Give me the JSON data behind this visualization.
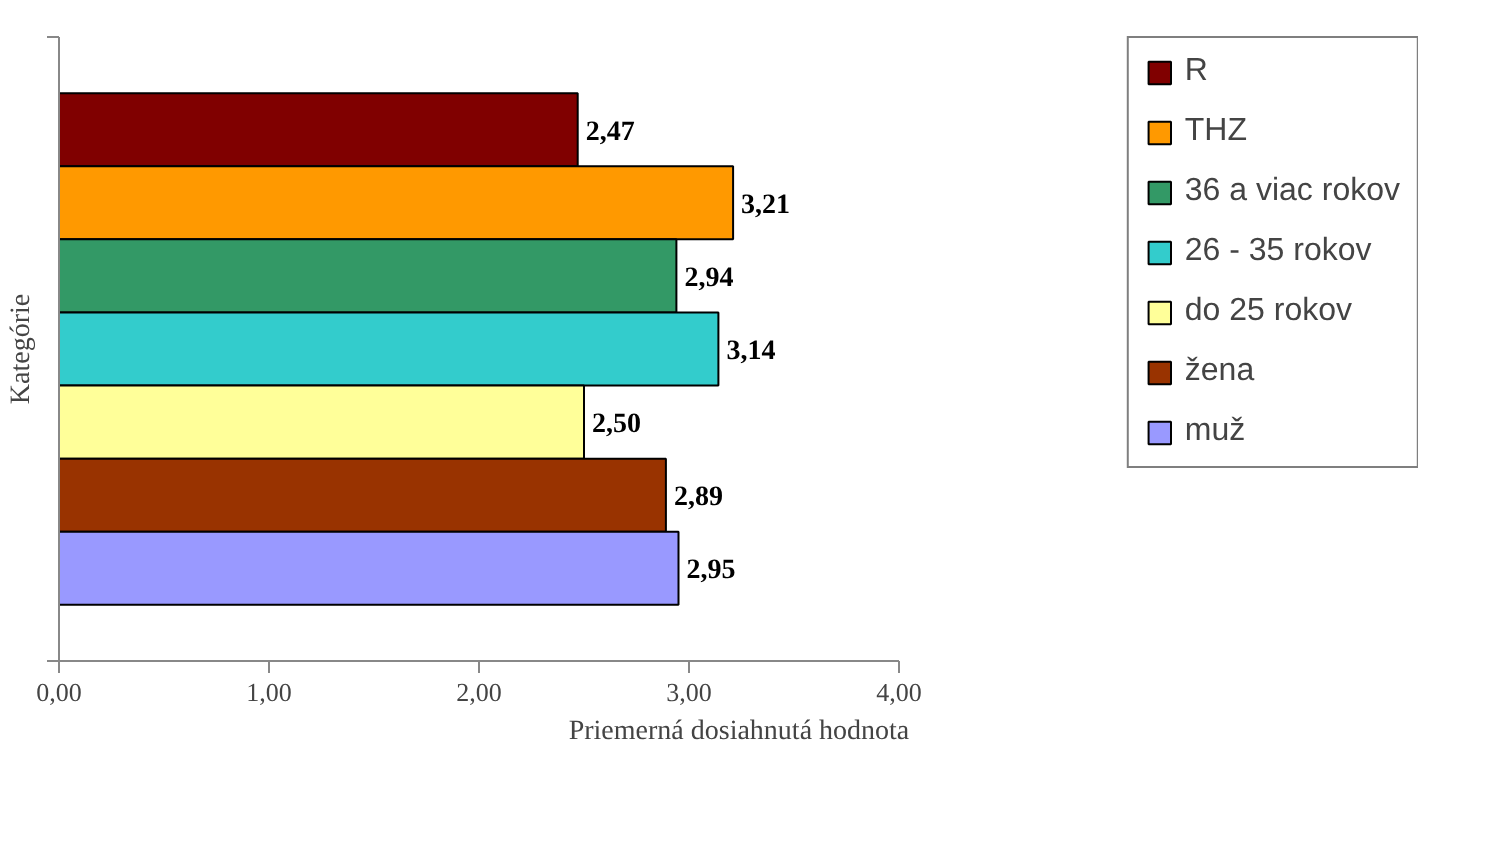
{
  "chart_data": {
    "type": "bar",
    "orientation": "horizontal",
    "xlabel": "Priemerná dosiahnutá hodnota",
    "ylabel": "Kategórie",
    "categories": [
      null
    ],
    "series": [
      {
        "name": "R",
        "color": "#800000",
        "values": [
          2.47
        ],
        "value_labels": [
          "2,47"
        ]
      },
      {
        "name": "THZ",
        "color": "#ff9900",
        "values": [
          3.21
        ],
        "value_labels": [
          "3,21"
        ]
      },
      {
        "name": "36 a viac rokov",
        "color": "#339966",
        "values": [
          2.94
        ],
        "value_labels": [
          "2,94"
        ]
      },
      {
        "name": "26 - 35 rokov",
        "color": "#33cccc",
        "values": [
          3.14
        ],
        "value_labels": [
          "3,14"
        ]
      },
      {
        "name": "do 25 rokov",
        "color": "#ffff99",
        "values": [
          2.5
        ],
        "value_labels": [
          "2,50"
        ]
      },
      {
        "name": "žena",
        "color": "#993300",
        "values": [
          2.89
        ],
        "value_labels": [
          "2,89"
        ]
      },
      {
        "name": "muž",
        "color": "#9999ff",
        "values": [
          2.95
        ],
        "value_labels": [
          "2,95"
        ]
      }
    ],
    "xlim": [
      0,
      4
    ],
    "xticks": [
      {
        "value": 0,
        "label": "0,00"
      },
      {
        "value": 1,
        "label": "1,00"
      },
      {
        "value": 2,
        "label": "2,00"
      },
      {
        "value": 3,
        "label": "3,00"
      },
      {
        "value": 4,
        "label": "4,00"
      }
    ],
    "grid": false,
    "legend": "right"
  }
}
